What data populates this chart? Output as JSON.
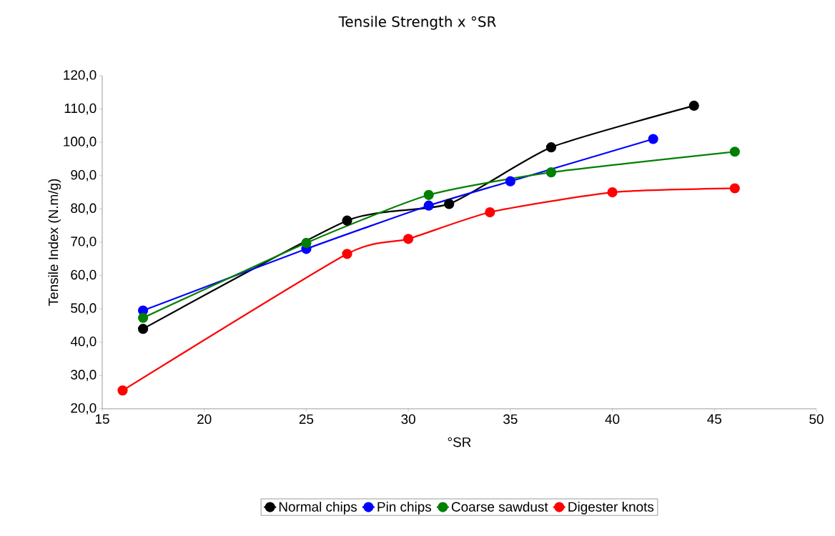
{
  "chart_data": {
    "type": "line",
    "title": "Tensile Strength x °SR",
    "xlabel": "°SR",
    "ylabel": "Tensile Index (N.m/g)",
    "xlim": [
      15,
      50
    ],
    "xticks": [
      15,
      20,
      25,
      30,
      35,
      40,
      45,
      50
    ],
    "ylim": [
      20,
      120
    ],
    "yticks": [
      {
        "value": 20,
        "label": "20,0"
      },
      {
        "value": 30,
        "label": "30,0"
      },
      {
        "value": 40,
        "label": "40,0"
      },
      {
        "value": 50,
        "label": "50,0"
      },
      {
        "value": 60,
        "label": "60,0"
      },
      {
        "value": 70,
        "label": "70,0"
      },
      {
        "value": 80,
        "label": "80,0"
      },
      {
        "value": 90,
        "label": "90,0"
      },
      {
        "value": 100,
        "label": "100,0"
      },
      {
        "value": 110,
        "label": "110,0"
      },
      {
        "value": 120,
        "label": "120,0"
      }
    ],
    "marker": "circle",
    "line_style": "solid",
    "legend": "bottom",
    "grid": false,
    "series": [
      {
        "name": "Normal chips",
        "color": "#000000",
        "x": [
          17,
          27,
          32,
          37,
          44
        ],
        "values": [
          44,
          76.5,
          81.5,
          98.5,
          111
        ]
      },
      {
        "name": "Pin chips",
        "color": "#0000ff",
        "x": [
          17,
          25,
          31,
          35,
          42
        ],
        "values": [
          49.5,
          68,
          81,
          88.3,
          101
        ]
      },
      {
        "name": "Coarse sawdust",
        "color": "#008000",
        "x": [
          17,
          25,
          31,
          37,
          46
        ],
        "values": [
          47.3,
          69.8,
          84.2,
          91,
          97.2
        ]
      },
      {
        "name": "Digester knots",
        "color": "#ff0000",
        "x": [
          16,
          27,
          30,
          34,
          40,
          46
        ],
        "values": [
          25.5,
          66.5,
          71,
          79,
          85,
          86.2
        ]
      }
    ]
  }
}
